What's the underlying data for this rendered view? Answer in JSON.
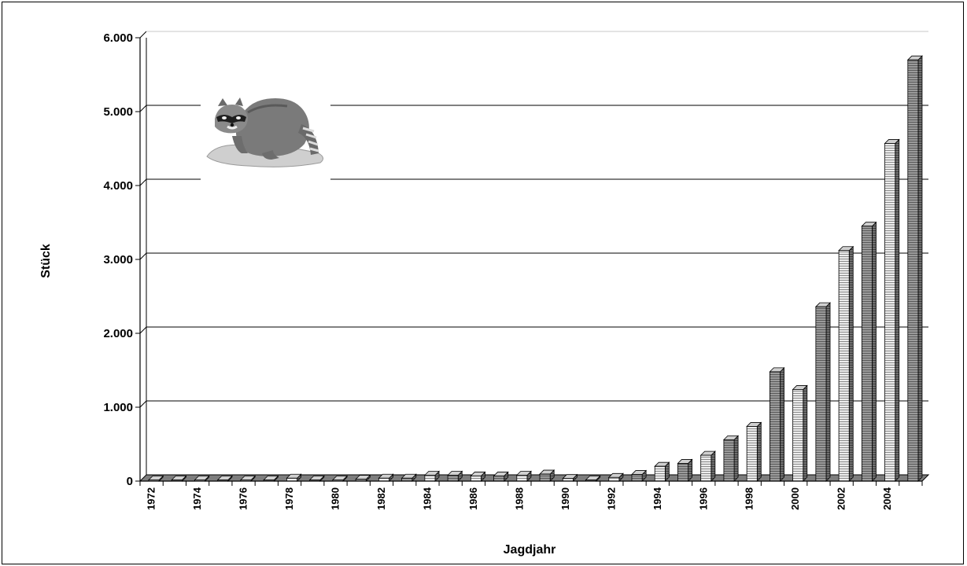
{
  "chart_data": {
    "type": "bar",
    "xlabel": "Jagdjahr",
    "ylabel": "Stück",
    "ylim": [
      0,
      6000
    ],
    "yticks": [
      0,
      1000,
      2000,
      3000,
      4000,
      5000,
      6000
    ],
    "ytick_labels": [
      "0",
      "1.000",
      "2.000",
      "3.000",
      "4.000",
      "5.000",
      "6.000"
    ],
    "grid": "horizontal",
    "legend": "none",
    "style": "3d-bars",
    "categories": [
      "1972",
      "1973",
      "1974",
      "1975",
      "1976",
      "1977",
      "1978",
      "1979",
      "1980",
      "1981",
      "1982",
      "1983",
      "1984",
      "1985",
      "1986",
      "1987",
      "1988",
      "1989",
      "1990",
      "1991",
      "1992",
      "1993",
      "1994",
      "1995",
      "1996",
      "1997",
      "1998",
      "1999",
      "2000",
      "2001",
      "2002",
      "2003",
      "2004",
      "2005"
    ],
    "xtick_labels": [
      "1972",
      "1974",
      "1976",
      "1978",
      "1980",
      "1982",
      "1984",
      "1986",
      "1988",
      "1990",
      "1992",
      "1994",
      "1996",
      "1998",
      "2000",
      "2002",
      "2004"
    ],
    "values": [
      3,
      5,
      5,
      5,
      5,
      5,
      40,
      15,
      10,
      25,
      40,
      40,
      80,
      80,
      70,
      70,
      80,
      95,
      35,
      10,
      50,
      90,
      200,
      240,
      350,
      560,
      740,
      1480,
      1240,
      2360,
      3120,
      3450,
      4570,
      5700
    ],
    "annotations": [
      {
        "type": "image",
        "name": "raccoon-illustration",
        "placement": "top-left"
      }
    ]
  }
}
